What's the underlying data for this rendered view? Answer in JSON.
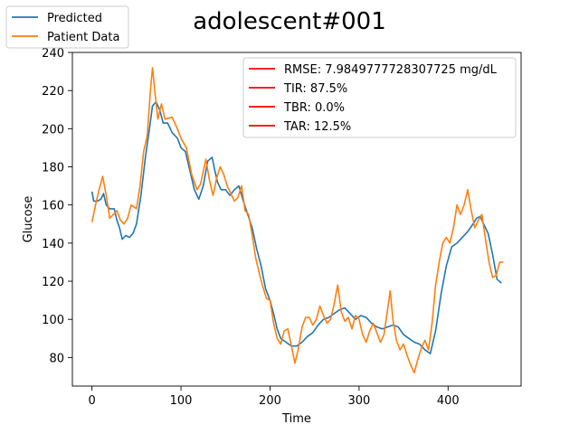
{
  "chart_data": {
    "type": "line",
    "title": "adolescent#001",
    "xlabel": "Time",
    "ylabel": "Glucose",
    "xlim": [
      -22,
      482
    ],
    "ylim": [
      65,
      240
    ],
    "xticks": [
      0,
      100,
      200,
      300,
      400
    ],
    "yticks": [
      80,
      100,
      120,
      140,
      160,
      180,
      200,
      220,
      240
    ],
    "grid": false,
    "series_legend_placement": "outside-top-left",
    "metrics_legend_placement": "top-right",
    "series": [
      {
        "name": "Predicted",
        "color": "#1f77b4",
        "points": [
          [
            0,
            167
          ],
          [
            2,
            162
          ],
          [
            6,
            162
          ],
          [
            10,
            163
          ],
          [
            13,
            166
          ],
          [
            16,
            160
          ],
          [
            20,
            158
          ],
          [
            25,
            158
          ],
          [
            28,
            152
          ],
          [
            31,
            148
          ],
          [
            34,
            142
          ],
          [
            38,
            144
          ],
          [
            42,
            143
          ],
          [
            46,
            145
          ],
          [
            50,
            150
          ],
          [
            55,
            165
          ],
          [
            60,
            185
          ],
          [
            64,
            198
          ],
          [
            68,
            212
          ],
          [
            72,
            214
          ],
          [
            76,
            210
          ],
          [
            80,
            203
          ],
          [
            85,
            203
          ],
          [
            90,
            198
          ],
          [
            96,
            195
          ],
          [
            100,
            190
          ],
          [
            105,
            188
          ],
          [
            110,
            178
          ],
          [
            115,
            168
          ],
          [
            120,
            163
          ],
          [
            125,
            170
          ],
          [
            130,
            183
          ],
          [
            135,
            185
          ],
          [
            138,
            178
          ],
          [
            141,
            172
          ],
          [
            145,
            168
          ],
          [
            150,
            168
          ],
          [
            155,
            165
          ],
          [
            160,
            168
          ],
          [
            165,
            170
          ],
          [
            170,
            162
          ],
          [
            175,
            155
          ],
          [
            180,
            148
          ],
          [
            185,
            137
          ],
          [
            190,
            128
          ],
          [
            195,
            116
          ],
          [
            200,
            110
          ],
          [
            204,
            103
          ],
          [
            208,
            95
          ],
          [
            212,
            90
          ],
          [
            218,
            88
          ],
          [
            224,
            86
          ],
          [
            230,
            86
          ],
          [
            236,
            88
          ],
          [
            242,
            91
          ],
          [
            248,
            93
          ],
          [
            254,
            97
          ],
          [
            260,
            100
          ],
          [
            266,
            101
          ],
          [
            272,
            103
          ],
          [
            278,
            105
          ],
          [
            284,
            106
          ],
          [
            290,
            103
          ],
          [
            296,
            100
          ],
          [
            302,
            102
          ],
          [
            308,
            101
          ],
          [
            314,
            98
          ],
          [
            320,
            96
          ],
          [
            326,
            95
          ],
          [
            332,
            96
          ],
          [
            338,
            97
          ],
          [
            344,
            96
          ],
          [
            350,
            92
          ],
          [
            356,
            90
          ],
          [
            362,
            88
          ],
          [
            368,
            87
          ],
          [
            374,
            84
          ],
          [
            380,
            82
          ],
          [
            386,
            94
          ],
          [
            392,
            113
          ],
          [
            398,
            128
          ],
          [
            404,
            138
          ],
          [
            410,
            140
          ],
          [
            416,
            143
          ],
          [
            422,
            146
          ],
          [
            428,
            150
          ],
          [
            432,
            153
          ],
          [
            436,
            154
          ],
          [
            440,
            150
          ],
          [
            445,
            145
          ],
          [
            450,
            134
          ],
          [
            455,
            121
          ],
          [
            460,
            119
          ]
        ]
      },
      {
        "name": "Patient Data",
        "color": "#ff7f0e",
        "points": [
          [
            0,
            151
          ],
          [
            4,
            160
          ],
          [
            8,
            168
          ],
          [
            12,
            175
          ],
          [
            16,
            165
          ],
          [
            20,
            153
          ],
          [
            24,
            155
          ],
          [
            28,
            157
          ],
          [
            32,
            152
          ],
          [
            36,
            150
          ],
          [
            40,
            153
          ],
          [
            44,
            160
          ],
          [
            50,
            158
          ],
          [
            54,
            170
          ],
          [
            58,
            188
          ],
          [
            62,
            196
          ],
          [
            66,
            222
          ],
          [
            68,
            232
          ],
          [
            71,
            218
          ],
          [
            74,
            205
          ],
          [
            78,
            213
          ],
          [
            82,
            205
          ],
          [
            90,
            206
          ],
          [
            95,
            201
          ],
          [
            100,
            195
          ],
          [
            106,
            190
          ],
          [
            112,
            176
          ],
          [
            118,
            168
          ],
          [
            122,
            171
          ],
          [
            128,
            184
          ],
          [
            132,
            173
          ],
          [
            136,
            165
          ],
          [
            140,
            174
          ],
          [
            144,
            180
          ],
          [
            148,
            176
          ],
          [
            152,
            170
          ],
          [
            156,
            166
          ],
          [
            160,
            162
          ],
          [
            164,
            164
          ],
          [
            168,
            170
          ],
          [
            172,
            157
          ],
          [
            176,
            155
          ],
          [
            180,
            144
          ],
          [
            184,
            132
          ],
          [
            188,
            124
          ],
          [
            192,
            117
          ],
          [
            196,
            111
          ],
          [
            200,
            110
          ],
          [
            204,
            98
          ],
          [
            208,
            90
          ],
          [
            212,
            87
          ],
          [
            216,
            94
          ],
          [
            220,
            95
          ],
          [
            224,
            86
          ],
          [
            228,
            77
          ],
          [
            232,
            85
          ],
          [
            236,
            96
          ],
          [
            240,
            101
          ],
          [
            244,
            101
          ],
          [
            248,
            97
          ],
          [
            252,
            100
          ],
          [
            256,
            107
          ],
          [
            260,
            102
          ],
          [
            264,
            98
          ],
          [
            268,
            100
          ],
          [
            272,
            108
          ],
          [
            276,
            118
          ],
          [
            280,
            104
          ],
          [
            284,
            99
          ],
          [
            288,
            101
          ],
          [
            292,
            95
          ],
          [
            296,
            102
          ],
          [
            300,
            100
          ],
          [
            304,
            92
          ],
          [
            308,
            88
          ],
          [
            312,
            94
          ],
          [
            316,
            98
          ],
          [
            320,
            93
          ],
          [
            324,
            88
          ],
          [
            328,
            92
          ],
          [
            332,
            105
          ],
          [
            335,
            115
          ],
          [
            338,
            100
          ],
          [
            342,
            89
          ],
          [
            346,
            84
          ],
          [
            350,
            87
          ],
          [
            354,
            81
          ],
          [
            358,
            76
          ],
          [
            362,
            72
          ],
          [
            366,
            79
          ],
          [
            370,
            85
          ],
          [
            374,
            89
          ],
          [
            378,
            84
          ],
          [
            382,
            98
          ],
          [
            386,
            118
          ],
          [
            390,
            130
          ],
          [
            394,
            140
          ],
          [
            398,
            143
          ],
          [
            402,
            140
          ],
          [
            406,
            148
          ],
          [
            410,
            160
          ],
          [
            414,
            155
          ],
          [
            418,
            160
          ],
          [
            422,
            168
          ],
          [
            426,
            157
          ],
          [
            430,
            148
          ],
          [
            434,
            152
          ],
          [
            438,
            155
          ],
          [
            442,
            142
          ],
          [
            446,
            130
          ],
          [
            450,
            122
          ],
          [
            454,
            123
          ],
          [
            458,
            130
          ],
          [
            462,
            130
          ]
        ]
      }
    ],
    "metrics_legend": [
      {
        "label": "RMSE: 7.9849777728307725 mg/dL",
        "color": "#ff0000"
      },
      {
        "label": "TIR: 87.5%",
        "color": "#ff0000"
      },
      {
        "label": "TBR: 0.0%",
        "color": "#ff0000"
      },
      {
        "label": "TAR: 12.5%",
        "color": "#ff0000"
      }
    ]
  }
}
